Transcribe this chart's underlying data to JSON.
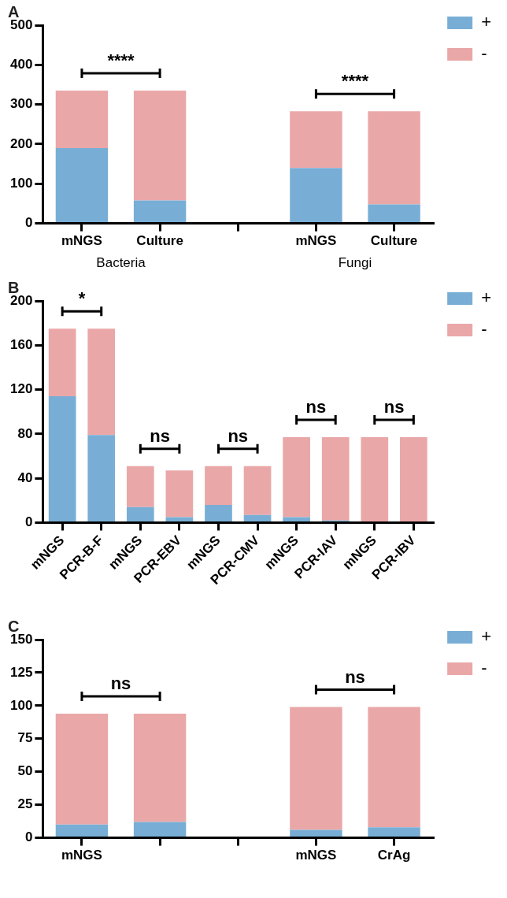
{
  "chart_data": [
    {
      "type": "bar",
      "title": "A",
      "stacked": true,
      "categories": [
        "mNGS",
        "Culture",
        null,
        "mNGS",
        "Culture"
      ],
      "series": [
        {
          "name": "+",
          "color": "#78aed5",
          "values": [
            190,
            58,
            null,
            140,
            48
          ]
        },
        {
          "name": "-",
          "color": "#eaa7a8",
          "values": [
            145,
            277,
            null,
            143,
            235
          ]
        }
      ],
      "ylim": [
        0,
        500
      ],
      "yticks": [
        0,
        100,
        200,
        300,
        400,
        500
      ],
      "grid": false,
      "legend": "top right",
      "annotations": [
        "****",
        "****",
        "Bacteria",
        "Fungi"
      ]
    },
    {
      "type": "bar",
      "title": "B",
      "stacked": true,
      "categories": [
        "mNGS",
        "PCR-B-F",
        "mNGS",
        "PCR-EBV",
        "mNGS",
        "PCR-CMV",
        "mNGS",
        "PCR-IAV",
        "mNGS",
        "PCR-IBV"
      ],
      "series": [
        {
          "name": "+",
          "color": "#78aed5",
          "values": [
            114,
            79,
            14,
            5,
            16,
            7,
            5,
            2,
            null,
            null
          ]
        },
        {
          "name": "-",
          "color": "#eaa7a8",
          "values": [
            61,
            96,
            37,
            42,
            35,
            44,
            72,
            75,
            77,
            77
          ]
        }
      ],
      "ylim": [
        0,
        200
      ],
      "yticks": [
        0,
        40,
        80,
        120,
        160,
        200
      ],
      "grid": false,
      "legend": "top right",
      "annotations": [
        "*",
        "ns",
        "ns",
        "ns",
        "ns"
      ]
    },
    {
      "type": "bar",
      "title": "C",
      "stacked": true,
      "categories": [
        "mNGS",
        null,
        null,
        "mNGS",
        "CrAg"
      ],
      "series": [
        {
          "name": "+",
          "color": "#78aed5",
          "values": [
            10,
            12,
            null,
            6,
            8
          ]
        },
        {
          "name": "-",
          "color": "#eaa7a8",
          "values": [
            84,
            82,
            null,
            93,
            91
          ]
        }
      ],
      "ylim": [
        0,
        150
      ],
      "yticks": [
        0,
        25,
        50,
        75,
        100,
        125,
        150
      ],
      "grid": false,
      "legend": "top right",
      "annotations": [
        "ns",
        "ns"
      ]
    }
  ]
}
